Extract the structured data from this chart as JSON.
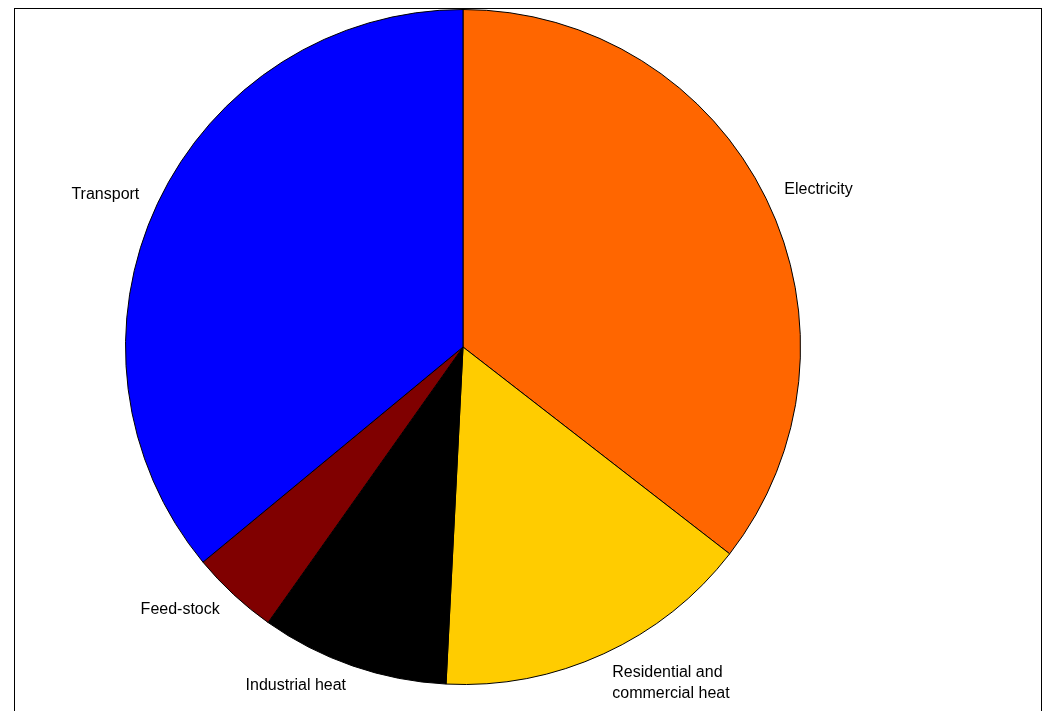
{
  "chart_data": {
    "type": "pie",
    "categories": [
      "Electricity",
      "Residential and commercial heat",
      "Industrial heat",
      "Feed-stock",
      "Transport"
    ],
    "values": [
      35.5,
      15.3,
      9.0,
      4.2,
      36.0
    ],
    "colors": [
      "#ff6600",
      "#ffcc00",
      "#000000",
      "#800000",
      "#0000ff"
    ],
    "legend": false
  }
}
